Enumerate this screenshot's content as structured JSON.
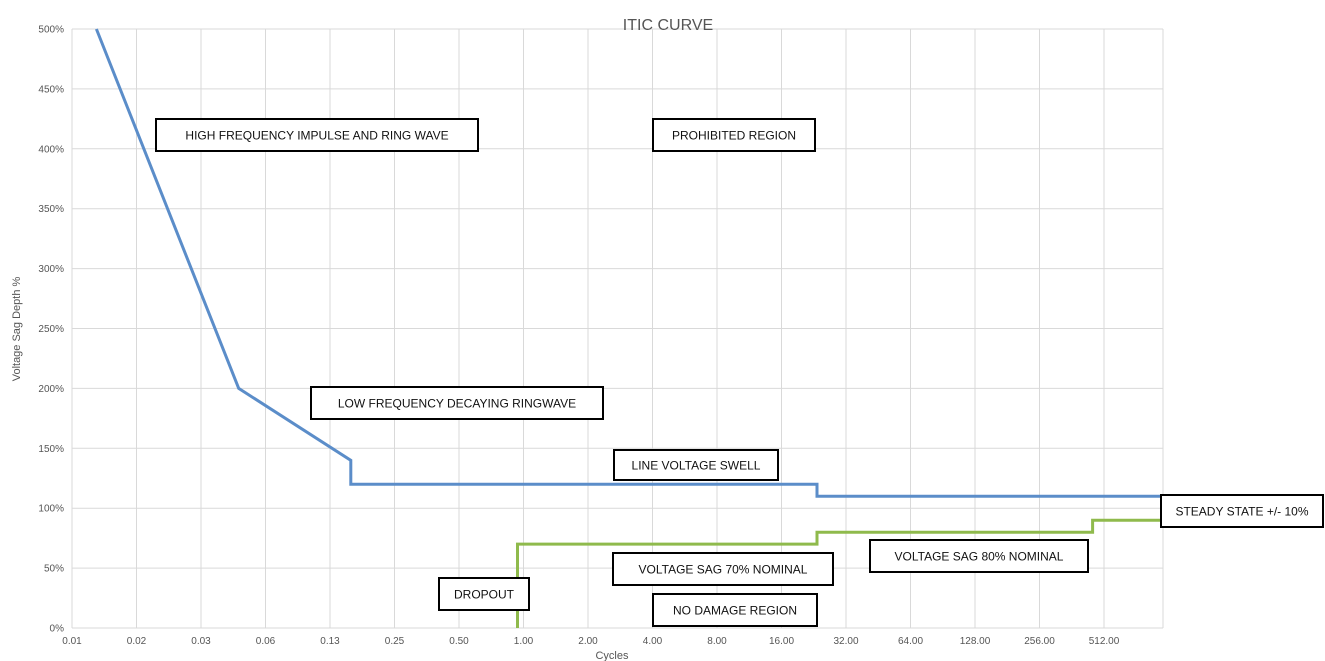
{
  "chart_data": {
    "type": "line",
    "title": "ITIC CURVE",
    "xlabel": "Cycles",
    "ylabel": "Voltage Sag Depth %",
    "x_ticks": [
      "0.01",
      "0.02",
      "0.03",
      "0.06",
      "0.13",
      "0.25",
      "0.50",
      "1.00",
      "2.00",
      "4.00",
      "8.00",
      "16.00",
      "32.00",
      "64.00",
      "128.00",
      "256.00",
      "512.00"
    ],
    "y_ticks": [
      "0%",
      "50%",
      "100%",
      "150%",
      "200%",
      "250%",
      "300%",
      "350%",
      "400%",
      "450%",
      "500%"
    ],
    "ylim": [
      0,
      500
    ],
    "x_scale": "log2",
    "grid": true,
    "series": [
      {
        "color": "#5b8dc9",
        "x": [
          0.013,
          0.06,
          0.2,
          0.2,
          30,
          30,
          2048
        ],
        "y": [
          500,
          200,
          140,
          120,
          120,
          110,
          110
        ]
      },
      {
        "color": "#8fba4c",
        "x": [
          1.2,
          1.2,
          30,
          30,
          580,
          580,
          2048
        ],
        "y": [
          0,
          70,
          70,
          80,
          80,
          90,
          90
        ]
      }
    ],
    "annotations": [
      {
        "id": "ann-impulse",
        "text": "HIGH FREQUENCY IMPULSE AND RING WAVE"
      },
      {
        "id": "ann-prohibited",
        "text": "PROHIBITED REGION"
      },
      {
        "id": "ann-ringwave",
        "text": "LOW FREQUENCY DECAYING RINGWAVE"
      },
      {
        "id": "ann-swell",
        "text": "LINE VOLTAGE SWELL"
      },
      {
        "id": "ann-steady",
        "text": "STEADY STATE +/- 10%"
      },
      {
        "id": "ann-sag80",
        "text": "VOLTAGE SAG 80% NOMINAL"
      },
      {
        "id": "ann-sag70",
        "text": "VOLTAGE SAG 70% NOMINAL"
      },
      {
        "id": "ann-dropout",
        "text": "DROPOUT"
      },
      {
        "id": "ann-nodamage",
        "text": "NO DAMAGE REGION"
      }
    ]
  }
}
